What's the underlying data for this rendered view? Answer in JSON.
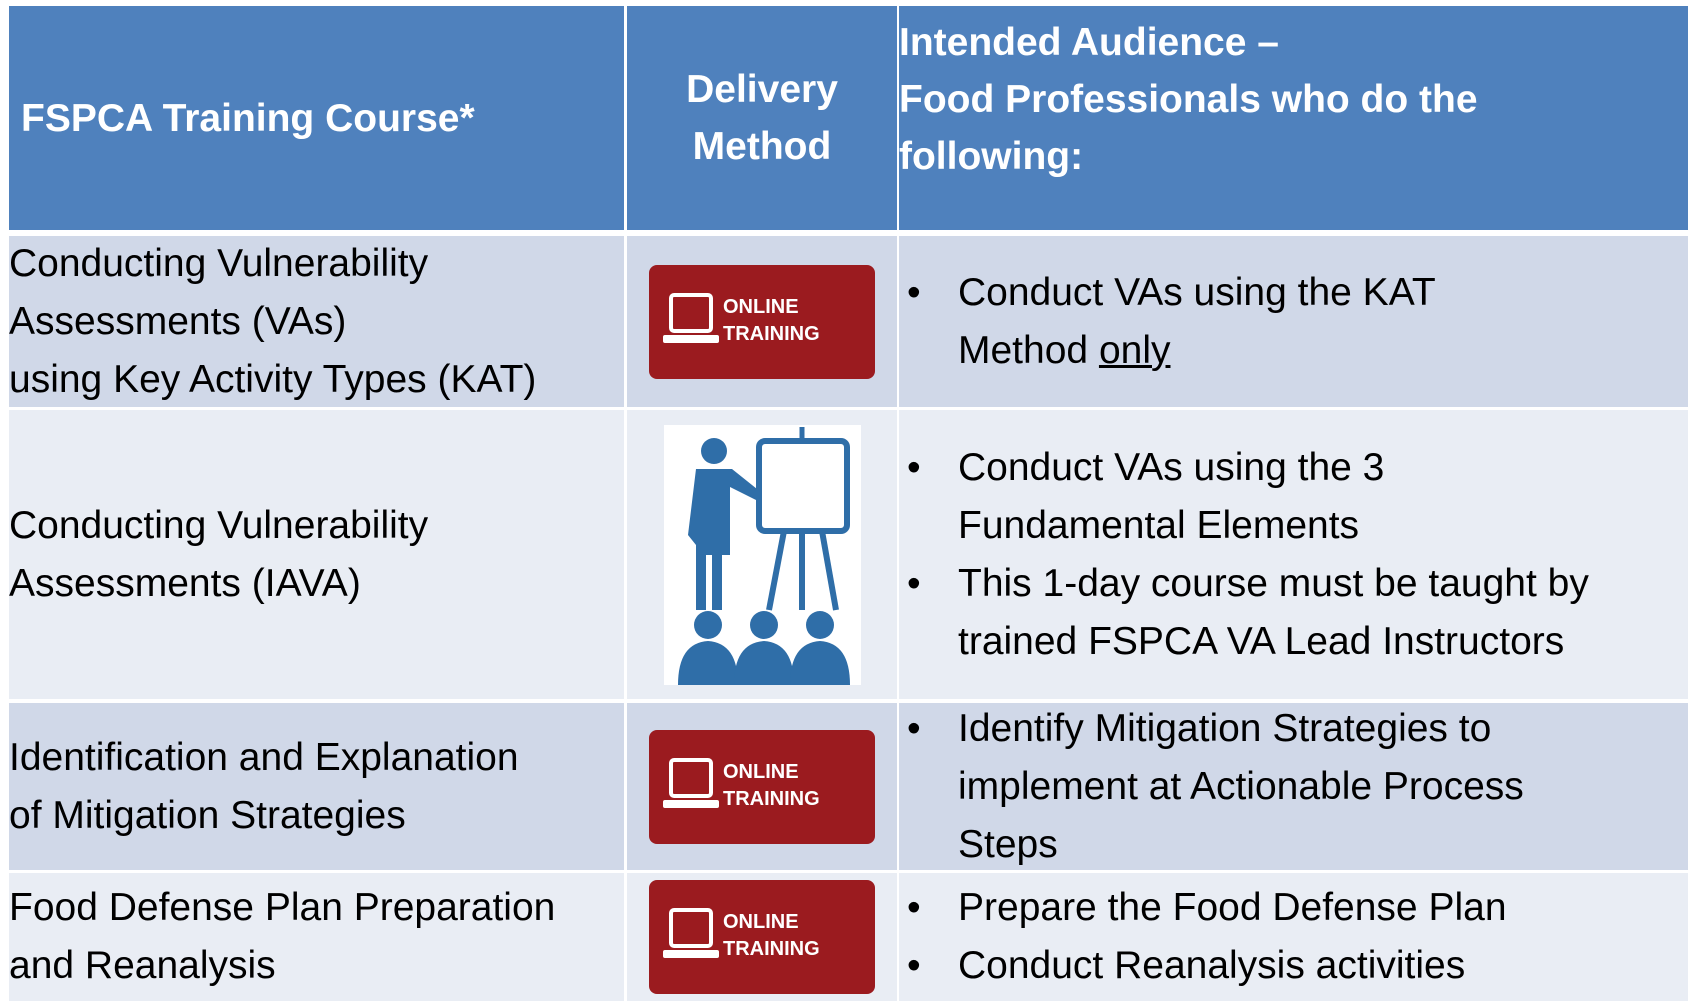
{
  "header": {
    "course": "FSPCA Training Course*",
    "delivery": [
      "Delivery",
      "Method"
    ],
    "audience": [
      "Intended Audience –",
      "Food Professionals who do the",
      "following:"
    ]
  },
  "rows": [
    {
      "course": [
        "Conducting Vulnerability",
        "Assessments (VAs)",
        "using Key Activity Types (KAT)"
      ],
      "delivery": [
        "ONLINE",
        "TRAINING"
      ],
      "audience": [
        {
          "lines": [
            "Conduct VAs using the KAT",
            "Method"
          ],
          "underlined": "only"
        }
      ]
    },
    {
      "course": [
        "Conducting Vulnerability",
        "Assessments (IAVA)"
      ],
      "audience": [
        {
          "lines": [
            "Conduct VAs using the 3",
            "Fundamental Elements"
          ]
        },
        {
          "lines": [
            "This 1-day course must be taught by",
            "trained FSPCA VA Lead Instructors"
          ]
        }
      ]
    },
    {
      "course": [
        "Identification and Explanation",
        "of Mitigation Strategies"
      ],
      "delivery": [
        "ONLINE",
        "TRAINING"
      ],
      "audience": [
        {
          "lines": [
            "Identify Mitigation Strategies to",
            "implement at Actionable Process",
            "Steps"
          ]
        }
      ]
    },
    {
      "course": [
        "Food Defense Plan Preparation",
        "and Reanalysis"
      ],
      "delivery": [
        "ONLINE",
        "TRAINING"
      ],
      "audience": [
        {
          "lines": [
            "Prepare the Food Defense Plan"
          ]
        },
        {
          "lines": [
            "Conduct Reanalysis activities"
          ]
        }
      ]
    }
  ]
}
